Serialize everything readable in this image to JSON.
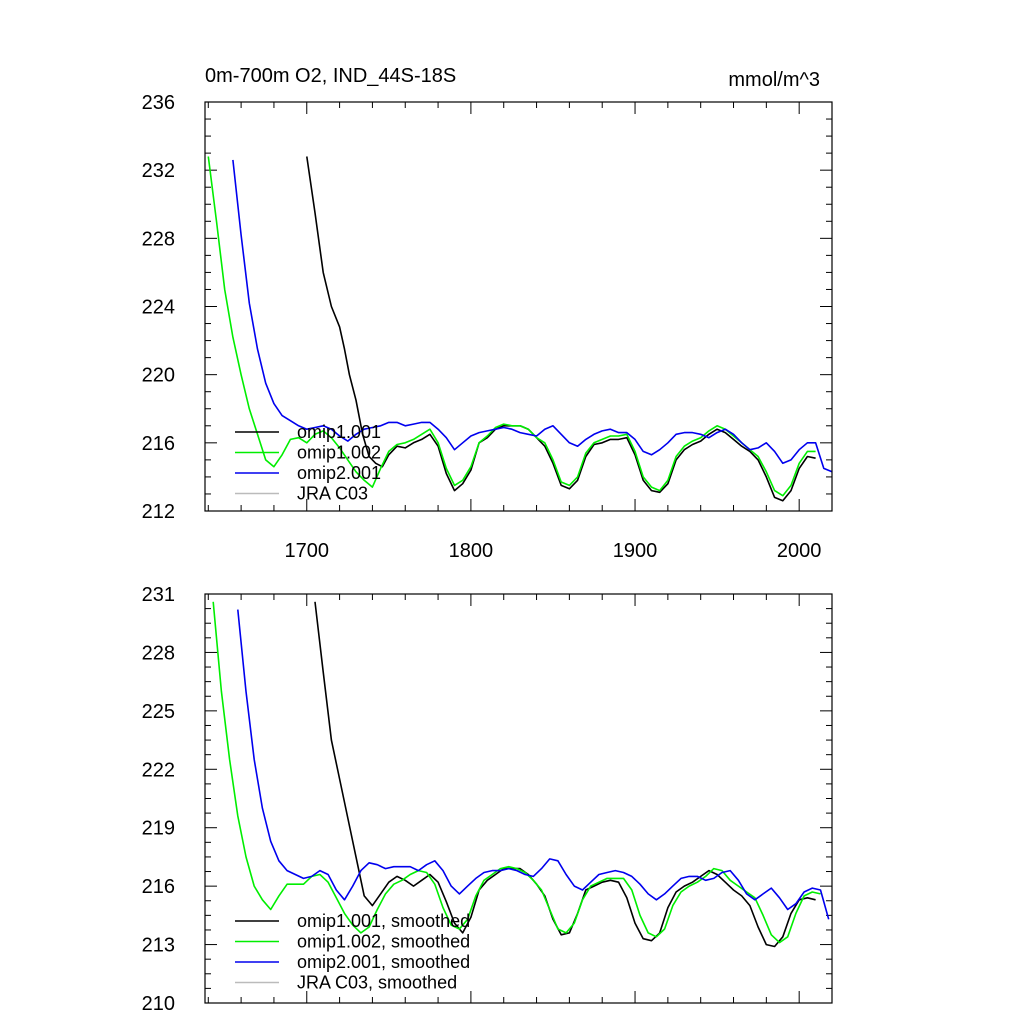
{
  "chart_data": [
    {
      "type": "line",
      "title": "0m-700m O2, IND_44S-18S",
      "units": "mmol/m^3",
      "xlim": [
        1638,
        2020
      ],
      "ylim": [
        212,
        236
      ],
      "xticks": [
        1700,
        1800,
        1900,
        2000
      ],
      "yticks": [
        212,
        216,
        220,
        224,
        228,
        232,
        236
      ],
      "legend_position": "bottom-left",
      "series": [
        {
          "name": "omip1.001",
          "color": "#000000",
          "x": [
            1700,
            1705,
            1710,
            1715,
            1720,
            1723,
            1726,
            1730,
            1734,
            1738,
            1742,
            1746,
            1750,
            1755,
            1760,
            1765,
            1770,
            1775,
            1780,
            1785,
            1790,
            1795,
            1800,
            1805,
            1810,
            1815,
            1820,
            1825,
            1830,
            1835,
            1840,
            1845,
            1850,
            1855,
            1860,
            1865,
            1870,
            1875,
            1880,
            1885,
            1890,
            1895,
            1900,
            1905,
            1910,
            1915,
            1920,
            1925,
            1930,
            1935,
            1940,
            1945,
            1950,
            1955,
            1960,
            1965,
            1970,
            1975,
            1980,
            1985,
            1990,
            1995,
            2000,
            2005,
            2010
          ],
          "y": [
            232.8,
            229.5,
            226,
            224,
            222.8,
            221.5,
            220,
            218.5,
            216.5,
            215.2,
            214.8,
            214.6,
            215.3,
            215.8,
            215.7,
            216,
            216.2,
            216.5,
            215.8,
            214.2,
            213.2,
            213.6,
            214.4,
            216,
            216.3,
            216.8,
            217,
            217,
            217,
            216.8,
            216.3,
            215.8,
            214.8,
            213.5,
            213.3,
            213.8,
            215.2,
            215.9,
            216,
            216.2,
            216.2,
            216.3,
            215.3,
            213.8,
            213.2,
            213.1,
            213.6,
            215,
            215.6,
            215.9,
            216.1,
            216.5,
            216.8,
            216.6,
            216.2,
            215.8,
            215.5,
            215,
            214,
            212.8,
            212.6,
            213.2,
            214.5,
            215.2,
            215.1
          ]
        },
        {
          "name": "omip1.002",
          "color": "#00ee00",
          "x": [
            1640,
            1645,
            1650,
            1655,
            1660,
            1665,
            1670,
            1675,
            1680,
            1685,
            1690,
            1695,
            1700,
            1705,
            1710,
            1715,
            1720,
            1725,
            1730,
            1735,
            1740,
            1745,
            1750,
            1755,
            1760,
            1765,
            1770,
            1775,
            1780,
            1785,
            1790,
            1795,
            1800,
            1805,
            1810,
            1815,
            1820,
            1825,
            1830,
            1835,
            1840,
            1845,
            1850,
            1855,
            1860,
            1865,
            1870,
            1875,
            1880,
            1885,
            1890,
            1895,
            1900,
            1905,
            1910,
            1915,
            1920,
            1925,
            1930,
            1935,
            1940,
            1945,
            1950,
            1955,
            1960,
            1965,
            1970,
            1975,
            1980,
            1985,
            1990,
            1995,
            2000,
            2005,
            2010
          ],
          "y": [
            232.8,
            229,
            225,
            222.2,
            220,
            218,
            216.5,
            215,
            214.6,
            215.3,
            216.2,
            216.3,
            216,
            216.5,
            216.7,
            216.3,
            215.7,
            215,
            214.3,
            213.8,
            213.4,
            214.5,
            215.5,
            215.9,
            216,
            216.2,
            216.5,
            216.8,
            216,
            214.5,
            213.5,
            213.8,
            214.6,
            216,
            216.4,
            216.9,
            217.1,
            217,
            217,
            216.8,
            216.3,
            216,
            215,
            213.7,
            213.5,
            214,
            215.4,
            216,
            216.2,
            216.4,
            216.4,
            216.5,
            215.5,
            214,
            213.4,
            213.2,
            213.8,
            215.2,
            215.8,
            216.1,
            216.3,
            216.7,
            217,
            216.8,
            216.4,
            216,
            215.6,
            215.2,
            214.3,
            213.2,
            212.9,
            213.5,
            214.8,
            215.5,
            215.5
          ]
        },
        {
          "name": "omip2.001",
          "color": "#0000ee",
          "x": [
            1655,
            1660,
            1665,
            1670,
            1675,
            1680,
            1685,
            1690,
            1695,
            1700,
            1705,
            1710,
            1715,
            1720,
            1725,
            1730,
            1735,
            1740,
            1745,
            1750,
            1755,
            1760,
            1765,
            1770,
            1775,
            1780,
            1785,
            1790,
            1795,
            1800,
            1805,
            1810,
            1815,
            1820,
            1825,
            1830,
            1835,
            1840,
            1845,
            1850,
            1855,
            1860,
            1865,
            1870,
            1875,
            1880,
            1885,
            1890,
            1895,
            1900,
            1905,
            1910,
            1915,
            1920,
            1925,
            1930,
            1935,
            1940,
            1945,
            1950,
            1955,
            1960,
            1965,
            1970,
            1975,
            1980,
            1985,
            1990,
            1995,
            2000,
            2005,
            2010,
            2015,
            2020
          ],
          "y": [
            232.6,
            228.2,
            224.2,
            221.5,
            219.5,
            218.3,
            217.6,
            217.3,
            217,
            216.8,
            216.9,
            217,
            216.8,
            216.4,
            216.1,
            216.5,
            216.8,
            216.9,
            217,
            217.2,
            217.2,
            217,
            217.1,
            217.2,
            217.2,
            216.8,
            216.3,
            215.6,
            216,
            216.4,
            216.6,
            216.7,
            216.8,
            216.9,
            216.8,
            216.6,
            216.5,
            216.4,
            216.8,
            217,
            216.5,
            216,
            215.8,
            216.2,
            216.5,
            216.7,
            216.8,
            216.6,
            216.6,
            216.2,
            215.5,
            215.3,
            215.6,
            216,
            216.5,
            216.6,
            216.6,
            216.5,
            216.3,
            216.6,
            216.8,
            216.5,
            216,
            215.6,
            215.7,
            216,
            215.5,
            214.8,
            215,
            215.6,
            216,
            216,
            214.5,
            214.3
          ]
        },
        {
          "name": "JRA C03",
          "color": "#bbbbbb",
          "x": [],
          "y": []
        }
      ]
    },
    {
      "type": "line",
      "title": "",
      "xlim": [
        1638,
        2020
      ],
      "ylim": [
        210,
        231
      ],
      "xticks": [
        1700,
        1800,
        1900,
        2000
      ],
      "yticks": [
        210,
        213,
        216,
        219,
        222,
        225,
        228,
        231
      ],
      "legend_position": "bottom-left",
      "series": [
        {
          "name": "omip1.001, smoothed",
          "color": "#000000",
          "x": [
            1705,
            1710,
            1715,
            1720,
            1725,
            1730,
            1735,
            1740,
            1745,
            1750,
            1755,
            1760,
            1765,
            1770,
            1775,
            1780,
            1785,
            1790,
            1795,
            1800,
            1805,
            1810,
            1815,
            1820,
            1825,
            1830,
            1835,
            1840,
            1845,
            1850,
            1855,
            1860,
            1865,
            1870,
            1875,
            1880,
            1885,
            1890,
            1895,
            1900,
            1905,
            1910,
            1915,
            1920,
            1925,
            1930,
            1935,
            1940,
            1945,
            1950,
            1955,
            1960,
            1965,
            1970,
            1975,
            1980,
            1985,
            1990,
            1995,
            2000,
            2005,
            2010
          ],
          "y": [
            230.6,
            227,
            223.5,
            221.5,
            219.5,
            217.5,
            215.5,
            215,
            215.6,
            216.2,
            216.5,
            216.3,
            216,
            216.3,
            216.6,
            216.2,
            215.2,
            214.1,
            213.6,
            214.4,
            215.8,
            216.3,
            216.6,
            216.9,
            216.9,
            216.9,
            216.6,
            216.1,
            215.5,
            214.3,
            213.5,
            213.6,
            214.6,
            215.8,
            216,
            216.2,
            216.3,
            216.2,
            215.4,
            214.1,
            213.3,
            213.2,
            213.6,
            214.9,
            215.7,
            216,
            216.2,
            216.5,
            216.8,
            216.6,
            216.2,
            215.8,
            215.5,
            215,
            213.9,
            213,
            212.9,
            213.4,
            214.6,
            215.3,
            215.4,
            215.3
          ]
        },
        {
          "name": "omip1.002, smoothed",
          "color": "#00ee00",
          "x": [
            1643,
            1648,
            1653,
            1658,
            1663,
            1668,
            1673,
            1678,
            1683,
            1688,
            1693,
            1698,
            1703,
            1708,
            1713,
            1718,
            1723,
            1728,
            1733,
            1738,
            1743,
            1748,
            1753,
            1758,
            1763,
            1768,
            1773,
            1778,
            1783,
            1788,
            1793,
            1798,
            1803,
            1808,
            1813,
            1818,
            1823,
            1828,
            1833,
            1838,
            1843,
            1848,
            1853,
            1858,
            1863,
            1868,
            1873,
            1878,
            1883,
            1888,
            1893,
            1898,
            1903,
            1908,
            1913,
            1918,
            1923,
            1928,
            1933,
            1938,
            1943,
            1948,
            1953,
            1958,
            1963,
            1968,
            1973,
            1978,
            1983,
            1988,
            1993,
            1998,
            2003,
            2008,
            2013
          ],
          "y": [
            230.6,
            226,
            222.5,
            219.6,
            217.5,
            216,
            215.3,
            214.8,
            215.5,
            216.1,
            216.1,
            216.1,
            216.5,
            216.6,
            216.2,
            215.4,
            214.6,
            214,
            213.6,
            213.9,
            214.8,
            215.6,
            216.1,
            216.3,
            216.6,
            216.8,
            216.7,
            216.1,
            214.9,
            214,
            213.8,
            214.3,
            215.5,
            216.3,
            216.6,
            216.9,
            217,
            216.9,
            216.7,
            216.3,
            215.8,
            214.8,
            213.8,
            213.6,
            214.1,
            215.3,
            216,
            216.2,
            216.4,
            216.4,
            216.4,
            215.8,
            214.5,
            213.6,
            213.4,
            213.8,
            215,
            215.7,
            216,
            216.2,
            216.5,
            216.9,
            216.8,
            216.3,
            216,
            215.7,
            215.4,
            214.5,
            213.5,
            213.1,
            213.4,
            214.6,
            215.5,
            215.7,
            215.6
          ]
        },
        {
          "name": "omip2.001, smoothed",
          "color": "#0000ee",
          "x": [
            1658,
            1663,
            1668,
            1673,
            1678,
            1683,
            1688,
            1693,
            1698,
            1703,
            1708,
            1713,
            1718,
            1723,
            1728,
            1733,
            1738,
            1743,
            1748,
            1753,
            1758,
            1763,
            1768,
            1773,
            1778,
            1783,
            1788,
            1793,
            1798,
            1803,
            1808,
            1813,
            1818,
            1823,
            1828,
            1833,
            1838,
            1843,
            1848,
            1853,
            1858,
            1863,
            1868,
            1873,
            1878,
            1883,
            1888,
            1893,
            1898,
            1903,
            1908,
            1913,
            1918,
            1923,
            1928,
            1933,
            1938,
            1943,
            1948,
            1953,
            1958,
            1963,
            1968,
            1973,
            1978,
            1983,
            1988,
            1993,
            1998,
            2003,
            2008,
            2013,
            2018
          ],
          "y": [
            230.2,
            226,
            222.5,
            220,
            218.3,
            217.3,
            216.8,
            216.6,
            216.4,
            216.5,
            216.8,
            216.6,
            215.8,
            215.3,
            216,
            216.8,
            217.2,
            217.1,
            216.9,
            217,
            217,
            217,
            216.8,
            217.1,
            217.3,
            216.8,
            216,
            215.6,
            216,
            216.4,
            216.7,
            216.8,
            216.8,
            216.9,
            216.8,
            216.6,
            216.5,
            216.9,
            217.4,
            217.3,
            216.6,
            216,
            215.8,
            216.2,
            216.6,
            216.7,
            216.8,
            216.7,
            216.5,
            216.1,
            215.6,
            215.3,
            215.6,
            216,
            216.4,
            216.5,
            216.5,
            216.3,
            216.4,
            216.7,
            216.8,
            216.3,
            215.6,
            215.3,
            215.6,
            215.9,
            215.4,
            214.8,
            215.1,
            215.7,
            215.9,
            215.8,
            214.3
          ]
        },
        {
          "name": "JRA C03, smoothed",
          "color": "#bbbbbb",
          "x": [],
          "y": []
        }
      ]
    }
  ]
}
